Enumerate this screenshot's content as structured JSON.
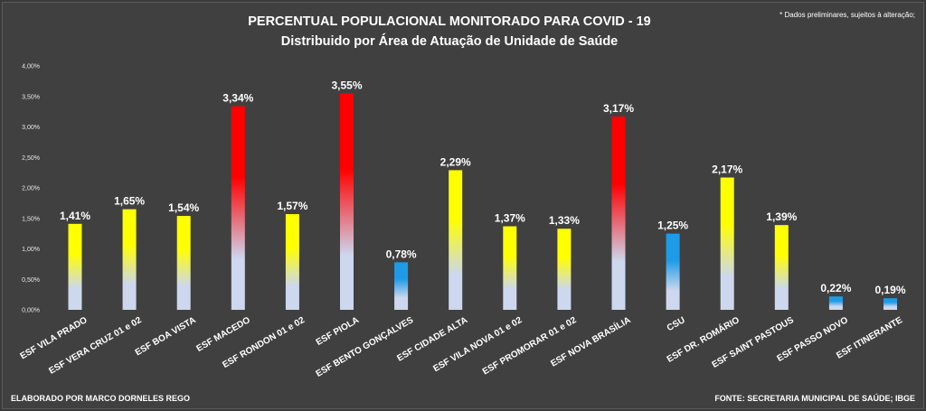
{
  "chart_data": {
    "type": "bar",
    "title": "PERCENTUAL POPULACIONAL MONITORADO PARA COVID - 19",
    "subtitle": "Distribuido por Área de Atuação de Unidade de Saúde",
    "note": "* Dados preliminares, sujeitos à alteração;",
    "categories": [
      "ESF VILA PRADO",
      "ESF VERA CRUZ 01 e 02",
      "ESF BOA VISTA",
      "ESF MACEDO",
      "ESF RONDON 01 e 02",
      "ESF PIOLA",
      "ESF BENTO GONÇALVES",
      "ESF CIDADE ALTA",
      "ESF VILA NOVA 01 e 02",
      "ESF PROMORAR 01 e 02",
      "ESF NOVA BRASÍLIA",
      "CSU",
      "ESF DR. ROMÁRIO",
      "ESF SAINT PASTOUS",
      "ESF PASSO NOVO",
      "ESF ITINERANTE"
    ],
    "values": [
      1.41,
      1.65,
      1.54,
      3.34,
      1.57,
      3.55,
      0.78,
      2.29,
      1.37,
      1.33,
      3.17,
      1.25,
      2.17,
      1.39,
      0.22,
      0.19
    ],
    "value_labels": [
      "1,41%",
      "1,65%",
      "1,54%",
      "3,34%",
      "1,57%",
      "3,55%",
      "0,78%",
      "2,29%",
      "1,37%",
      "1,33%",
      "3,17%",
      "1,25%",
      "2,17%",
      "1,39%",
      "0,22%",
      "0,19%"
    ],
    "bar_colors": [
      "yellow",
      "yellow",
      "yellow",
      "red",
      "yellow",
      "red",
      "blue",
      "yellow",
      "yellow",
      "yellow",
      "red",
      "blue",
      "yellow",
      "yellow",
      "blue",
      "blue"
    ],
    "color_scale": {
      "yellow": "#ffff00",
      "red": "#ff0000",
      "blue": "#1e9be6",
      "base": "#cdd7ee"
    },
    "ylim": [
      0,
      4
    ],
    "yticks": [
      0,
      0.5,
      1,
      1.5,
      2,
      2.5,
      3,
      3.5,
      4
    ],
    "ytick_labels": [
      "0,00%",
      "0,50%",
      "1,00%",
      "1,50%",
      "2,00%",
      "2,50%",
      "3,00%",
      "3,50%",
      "4,00%"
    ],
    "xlabel": "",
    "ylabel": "",
    "grid": false,
    "legend": "none"
  },
  "footer": {
    "left": "ELABORADO POR MARCO DORNELES REGO",
    "right": "FONTE: SECRETARIA MUNICIPAL DE SAÚDE; IBGE"
  },
  "colors": {
    "background": "#404040",
    "text": "#ffffff"
  }
}
